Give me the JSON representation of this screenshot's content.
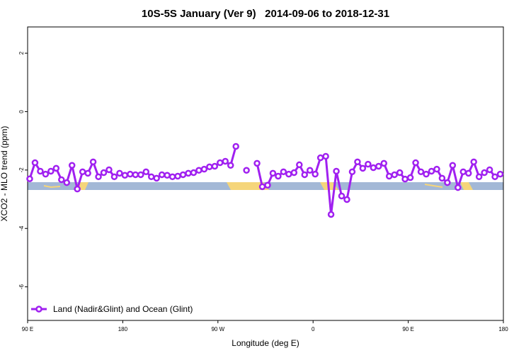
{
  "chart_data": {
    "type": "line",
    "title": "10S-5S January (Ver 9)   2014-09-06 to 2018-12-31",
    "x_label": "Longitude (deg E)",
    "y_label": "XCO2 - MLO trend (ppm)",
    "x": [
      92,
      97,
      102,
      107,
      112,
      117,
      122,
      127,
      132,
      137,
      142,
      147,
      152,
      157,
      162,
      167,
      172,
      177,
      182,
      187,
      192,
      197,
      202,
      207,
      212,
      217,
      222,
      227,
      232,
      237,
      242,
      247,
      252,
      257,
      262,
      267,
      272,
      277,
      282,
      287,
      292,
      297,
      302,
      307,
      312,
      317,
      322,
      327,
      332,
      337,
      342,
      347,
      352,
      357,
      362,
      367,
      372,
      377,
      382,
      387,
      392,
      397,
      402,
      407,
      412,
      417,
      422,
      427,
      432,
      437,
      442,
      447,
      452,
      457,
      462,
      467,
      472,
      477,
      482,
      487,
      492,
      497,
      502,
      507,
      512,
      517,
      522,
      527,
      532,
      537
    ],
    "series": [
      {
        "name": "Land (Nadir&Glint) and Ocean (Glint)",
        "color": "#a020f0",
        "values": [
          -2.3,
          -1.75,
          -2.04,
          -2.14,
          -2.04,
          -1.94,
          -2.33,
          -2.43,
          -1.84,
          -2.65,
          -2.06,
          -2.11,
          -1.72,
          -2.23,
          -2.09,
          -1.99,
          -2.23,
          -2.11,
          -2.18,
          -2.14,
          -2.16,
          -2.16,
          -2.06,
          -2.23,
          -2.28,
          -2.16,
          -2.18,
          -2.23,
          -2.21,
          -2.16,
          -2.11,
          -2.09,
          -2.01,
          -1.97,
          -1.89,
          -1.87,
          -1.75,
          -1.7,
          -1.84,
          -1.19,
          null,
          -2.01,
          null,
          -1.77,
          -2.57,
          -2.52,
          -2.11,
          -2.21,
          -2.06,
          -2.14,
          -2.09,
          -1.82,
          -2.16,
          -2.01,
          -2.14,
          -1.58,
          -1.53,
          -3.52,
          -2.04,
          -2.89,
          -3.01,
          -2.06,
          -1.72,
          -1.94,
          -1.8,
          -1.92,
          -1.87,
          -1.77,
          -2.21,
          -2.16,
          -2.09,
          -2.31,
          -2.26,
          -1.75,
          -2.06,
          -2.14,
          -2.04,
          -1.97,
          -2.28,
          -2.43,
          -1.84,
          -2.6,
          -2.06,
          -2.11,
          -1.72,
          -2.23,
          -2.09,
          -1.99,
          -2.23,
          -2.14
        ]
      }
    ],
    "xlim": [
      90,
      540
    ],
    "xticks": [
      {
        "value": 90,
        "label": "90 E"
      },
      180,
      {
        "value": 270,
        "label": "90 W"
      },
      {
        "value": 360,
        "label": "0"
      },
      {
        "value": 450,
        "label": "90 E"
      },
      180.0001
    ],
    "ylim": [
      -7.15,
      2.9
    ],
    "yticks": [
      -6,
      -4,
      -2,
      0,
      2
    ],
    "legend": "bottom-left"
  }
}
